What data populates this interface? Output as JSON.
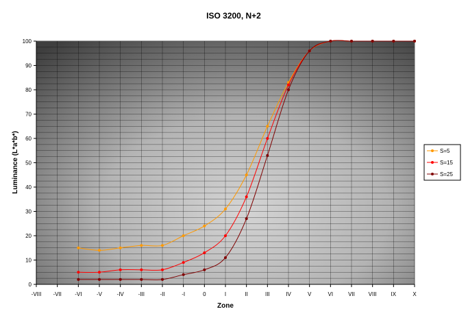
{
  "chart_data": {
    "type": "line",
    "title": "ISO 3200, N+2",
    "xlabel": "Zone",
    "ylabel": "Luminance (L*a*b*)",
    "categories": [
      "-VIII",
      "-VII",
      "-VI",
      "-V",
      "-IV",
      "-III",
      "-II",
      "-I",
      "0",
      "I",
      "II",
      "III",
      "IV",
      "V",
      "VI",
      "VII",
      "VIII",
      "IX",
      "X"
    ],
    "y_ticks": [
      "0",
      "10",
      "20",
      "30",
      "40",
      "50",
      "60",
      "70",
      "80",
      "90",
      "100"
    ],
    "ylim": [
      0,
      100
    ],
    "grid": true,
    "legend_position": "right",
    "series": [
      {
        "name": "S=5",
        "color": "#ff9900",
        "values": [
          null,
          null,
          15,
          14,
          15,
          16,
          16,
          20,
          24,
          31,
          45,
          65,
          83,
          96,
          100,
          100,
          100,
          100,
          100
        ]
      },
      {
        "name": "S=15",
        "color": "#ff0000",
        "values": [
          null,
          null,
          5,
          5,
          6,
          6,
          6,
          9,
          13,
          20,
          36,
          60,
          82,
          96,
          100,
          100,
          100,
          100,
          100
        ]
      },
      {
        "name": "S=25",
        "color": "#800000",
        "values": [
          null,
          null,
          2,
          2,
          2,
          2,
          2,
          4,
          6,
          11,
          27,
          53,
          80,
          96,
          100,
          100,
          100,
          100,
          100
        ]
      }
    ]
  }
}
